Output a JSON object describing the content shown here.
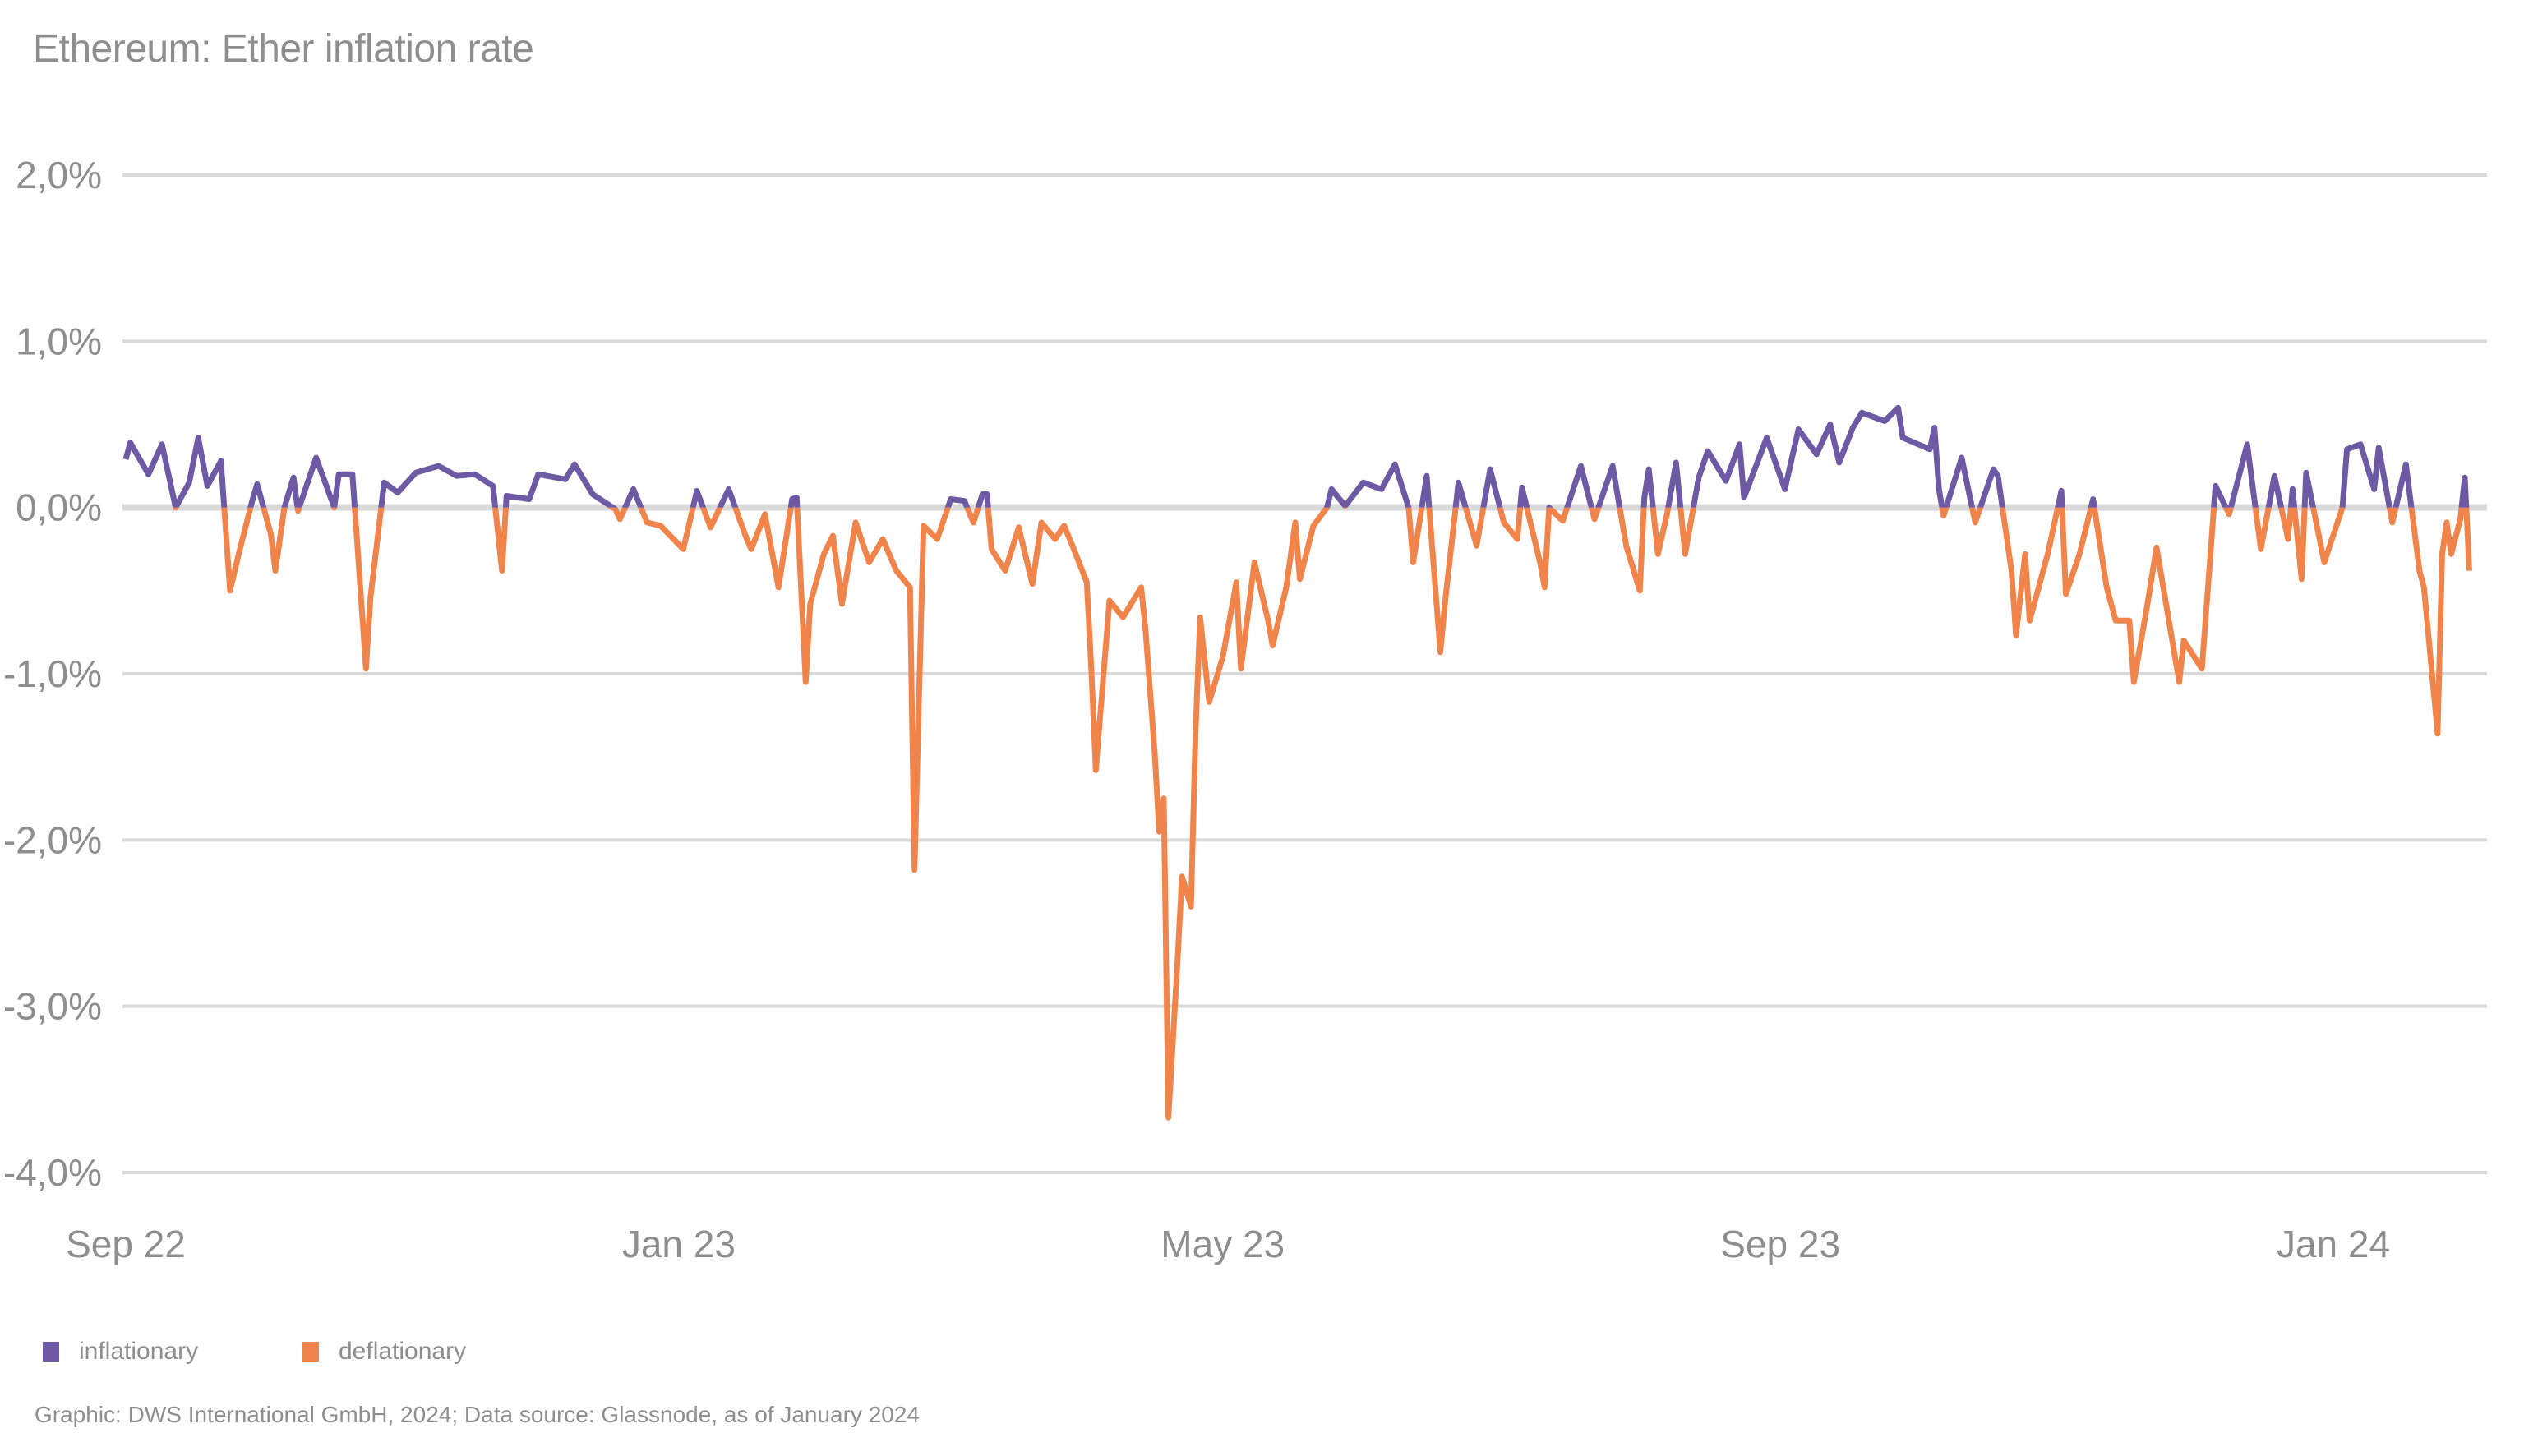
{
  "chart_data": {
    "type": "line",
    "title": "Ethereum: Ether inflation rate",
    "xlabel": "",
    "ylabel": "",
    "ylim": [
      -4.0,
      2.0
    ],
    "xlim": [
      "2022-09-01",
      "2024-02-01"
    ],
    "grid": true,
    "legend_placement": "bottom-left",
    "y_ticks": [
      {
        "value": 2,
        "label": "2,0%"
      },
      {
        "value": 1,
        "label": "1,0%"
      },
      {
        "value": 0,
        "label": "0,0%"
      },
      {
        "value": -1,
        "label": "-1,0%"
      },
      {
        "value": -2,
        "label": "-2,0%"
      },
      {
        "value": -3,
        "label": "-3,0%"
      },
      {
        "value": -4,
        "label": "-4,0%"
      }
    ],
    "x_ticks": [
      {
        "date": "2022-09-01",
        "label": "Sep 22"
      },
      {
        "date": "2023-01-01",
        "label": "Jan 23"
      },
      {
        "date": "2023-05-01",
        "label": "May 23"
      },
      {
        "date": "2023-09-01",
        "label": "Sep 23"
      },
      {
        "date": "2024-01-01",
        "label": "Jan 24"
      }
    ],
    "legend": [
      {
        "label": "inflationary",
        "color": "#6e5aa4",
        "condition": "value >= 0"
      },
      {
        "label": "deflationary",
        "color": "#f0844a",
        "condition": "value < 0"
      }
    ],
    "series": [
      {
        "dates": [
          "2022-09-01",
          "2022-09-02",
          "2022-09-06",
          "2022-09-09",
          "2022-09-12",
          "2022-09-15",
          "2022-09-17",
          "2022-09-19",
          "2022-09-22",
          "2022-09-24",
          "2022-09-26",
          "2022-09-29",
          "2022-09-30",
          "2022-10-03",
          "2022-10-04",
          "2022-10-06",
          "2022-10-08",
          "2022-10-09",
          "2022-10-13",
          "2022-10-17",
          "2022-10-18",
          "2022-10-21",
          "2022-10-24",
          "2022-10-25",
          "2022-10-28",
          "2022-10-31",
          "2022-11-04",
          "2022-11-09",
          "2022-11-13",
          "2022-11-17",
          "2022-11-21",
          "2022-11-23",
          "2022-11-24",
          "2022-11-29",
          "2022-12-01",
          "2022-12-07",
          "2022-12-09",
          "2022-12-13",
          "2022-12-18",
          "2022-12-19",
          "2022-12-22",
          "2022-12-25",
          "2022-12-28",
          "2023-01-02",
          "2023-01-05",
          "2023-01-08",
          "2023-01-12",
          "2023-01-16",
          "2023-01-17",
          "2023-01-20",
          "2023-01-23",
          "2023-01-26",
          "2023-01-27",
          "2023-01-29",
          "2023-01-30",
          "2023-02-02",
          "2023-02-04",
          "2023-02-06",
          "2023-02-09",
          "2023-02-12",
          "2023-02-15",
          "2023-02-18",
          "2023-02-21",
          "2023-02-22",
          "2023-02-24",
          "2023-02-27",
          "2023-03-02",
          "2023-03-05",
          "2023-03-07",
          "2023-03-09",
          "2023-03-10",
          "2023-03-11",
          "2023-03-14",
          "2023-03-17",
          "2023-03-20",
          "2023-03-22",
          "2023-03-25",
          "2023-03-27",
          "2023-03-29",
          "2023-04-01",
          "2023-04-02",
          "2023-04-03",
          "2023-04-06",
          "2023-04-09",
          "2023-04-13",
          "2023-04-14",
          "2023-04-16",
          "2023-04-17",
          "2023-04-18",
          "2023-04-19",
          "2023-04-21",
          "2023-04-22",
          "2023-04-24",
          "2023-04-25",
          "2023-04-26",
          "2023-04-28",
          "2023-05-01",
          "2023-05-04",
          "2023-05-05",
          "2023-05-08",
          "2023-05-11",
          "2023-05-12",
          "2023-05-15",
          "2023-05-17",
          "2023-05-18",
          "2023-05-21",
          "2023-05-24",
          "2023-05-25",
          "2023-05-28",
          "2023-06-01",
          "2023-06-05",
          "2023-06-08",
          "2023-06-11",
          "2023-06-12",
          "2023-06-15",
          "2023-06-18",
          "2023-06-19",
          "2023-06-22",
          "2023-06-26",
          "2023-06-29",
          "2023-07-02",
          "2023-07-05",
          "2023-07-06",
          "2023-07-10",
          "2023-07-11",
          "2023-07-12",
          "2023-07-15",
          "2023-07-19",
          "2023-07-22",
          "2023-07-26",
          "2023-07-29",
          "2023-08-01",
          "2023-08-02",
          "2023-08-03",
          "2023-08-05",
          "2023-08-07",
          "2023-08-09",
          "2023-08-11",
          "2023-08-14",
          "2023-08-16",
          "2023-08-20",
          "2023-08-23",
          "2023-08-24",
          "2023-08-29",
          "2023-09-02",
          "2023-09-05",
          "2023-09-09",
          "2023-09-12",
          "2023-09-14",
          "2023-09-17",
          "2023-09-19",
          "2023-09-24",
          "2023-09-27",
          "2023-09-28",
          "2023-10-04",
          "2023-10-05",
          "2023-10-06",
          "2023-10-07",
          "2023-10-11",
          "2023-10-14",
          "2023-10-18",
          "2023-10-19",
          "2023-10-22",
          "2023-10-23",
          "2023-10-25",
          "2023-10-26",
          "2023-10-30",
          "2023-11-02",
          "2023-11-03",
          "2023-11-06",
          "2023-11-09",
          "2023-11-12",
          "2023-11-14",
          "2023-11-17",
          "2023-11-18",
          "2023-11-21",
          "2023-11-23",
          "2023-11-28",
          "2023-11-29",
          "2023-12-03",
          "2023-12-05",
          "2023-12-06",
          "2023-12-09",
          "2023-12-13",
          "2023-12-16",
          "2023-12-19",
          "2023-12-22",
          "2023-12-23",
          "2023-12-25",
          "2023-12-26",
          "2023-12-30",
          "2024-01-03",
          "2024-01-04",
          "2024-01-07",
          "2024-01-10",
          "2024-01-11",
          "2024-01-14",
          "2024-01-17",
          "2024-01-20",
          "2024-01-21",
          "2024-01-23",
          "2024-01-24",
          "2024-01-25",
          "2024-01-26",
          "2024-01-27",
          "2024-01-29",
          "2024-01-30",
          "2024-01-31"
        ],
        "values": [
          0.29,
          0.39,
          0.2,
          0.38,
          0.0,
          0.15,
          0.42,
          0.13,
          0.28,
          -0.5,
          -0.27,
          0.05,
          0.14,
          -0.16,
          -0.38,
          0.0,
          0.18,
          -0.02,
          0.3,
          0.0,
          0.2,
          0.2,
          -0.97,
          -0.54,
          0.15,
          0.09,
          0.21,
          0.25,
          0.19,
          0.2,
          0.13,
          -0.38,
          0.07,
          0.05,
          0.2,
          0.17,
          0.26,
          0.08,
          -0.01,
          -0.07,
          0.11,
          -0.09,
          -0.11,
          -0.25,
          0.1,
          -0.12,
          0.11,
          -0.19,
          -0.25,
          -0.04,
          -0.48,
          0.05,
          0.06,
          -1.05,
          -0.58,
          -0.28,
          -0.17,
          -0.58,
          -0.09,
          -0.33,
          -0.19,
          -0.38,
          -0.48,
          -2.18,
          -0.11,
          -0.19,
          0.05,
          0.04,
          -0.09,
          0.08,
          0.08,
          -0.25,
          -0.38,
          -0.12,
          -0.46,
          -0.09,
          -0.19,
          -0.11,
          -0.24,
          -0.45,
          -0.97,
          -1.58,
          -0.56,
          -0.66,
          -0.48,
          -0.75,
          -1.48,
          -1.95,
          -1.75,
          -3.67,
          -2.74,
          -2.22,
          -2.4,
          -1.36,
          -0.66,
          -1.17,
          -0.9,
          -0.45,
          -0.97,
          -0.33,
          -0.68,
          -0.83,
          -0.48,
          -0.09,
          -0.43,
          -0.11,
          0.0,
          0.11,
          0.01,
          0.15,
          0.11,
          0.26,
          0.0,
          -0.33,
          0.19,
          -0.87,
          -0.58,
          0.15,
          -0.23,
          0.23,
          -0.09,
          -0.19,
          0.12,
          -0.33,
          -0.48,
          0.0,
          -0.08,
          0.25,
          -0.07,
          0.25,
          -0.23,
          -0.5,
          0.06,
          0.23,
          -0.28,
          -0.04,
          0.27,
          -0.28,
          0.18,
          0.34,
          0.16,
          0.38,
          0.06,
          0.42,
          0.11,
          0.47,
          0.32,
          0.5,
          0.27,
          0.48,
          0.57,
          0.52,
          0.6,
          0.42,
          0.35,
          0.48,
          0.11,
          -0.05,
          0.3,
          -0.09,
          0.23,
          0.19,
          -0.38,
          -0.77,
          -0.28,
          -0.68,
          -0.28,
          0.1,
          -0.52,
          -0.28,
          0.05,
          -0.48,
          -0.68,
          -0.68,
          -1.05,
          -0.58,
          -0.24,
          -1.05,
          -0.8,
          -0.97,
          -0.24,
          0.13,
          -0.04,
          0.38,
          -0.25,
          0.19,
          -0.19,
          0.11,
          -0.43,
          0.21,
          -0.33,
          0.0,
          0.35,
          0.38,
          0.11,
          0.36,
          -0.09,
          0.26,
          -0.38,
          -0.48,
          -1.07,
          -1.36,
          -0.28,
          -0.09,
          -0.28,
          -0.07,
          0.18,
          -0.38
        ]
      }
    ]
  },
  "source": "Graphic: DWS International GmbH, 2024; Data source: Glassnode, as of January 2024"
}
